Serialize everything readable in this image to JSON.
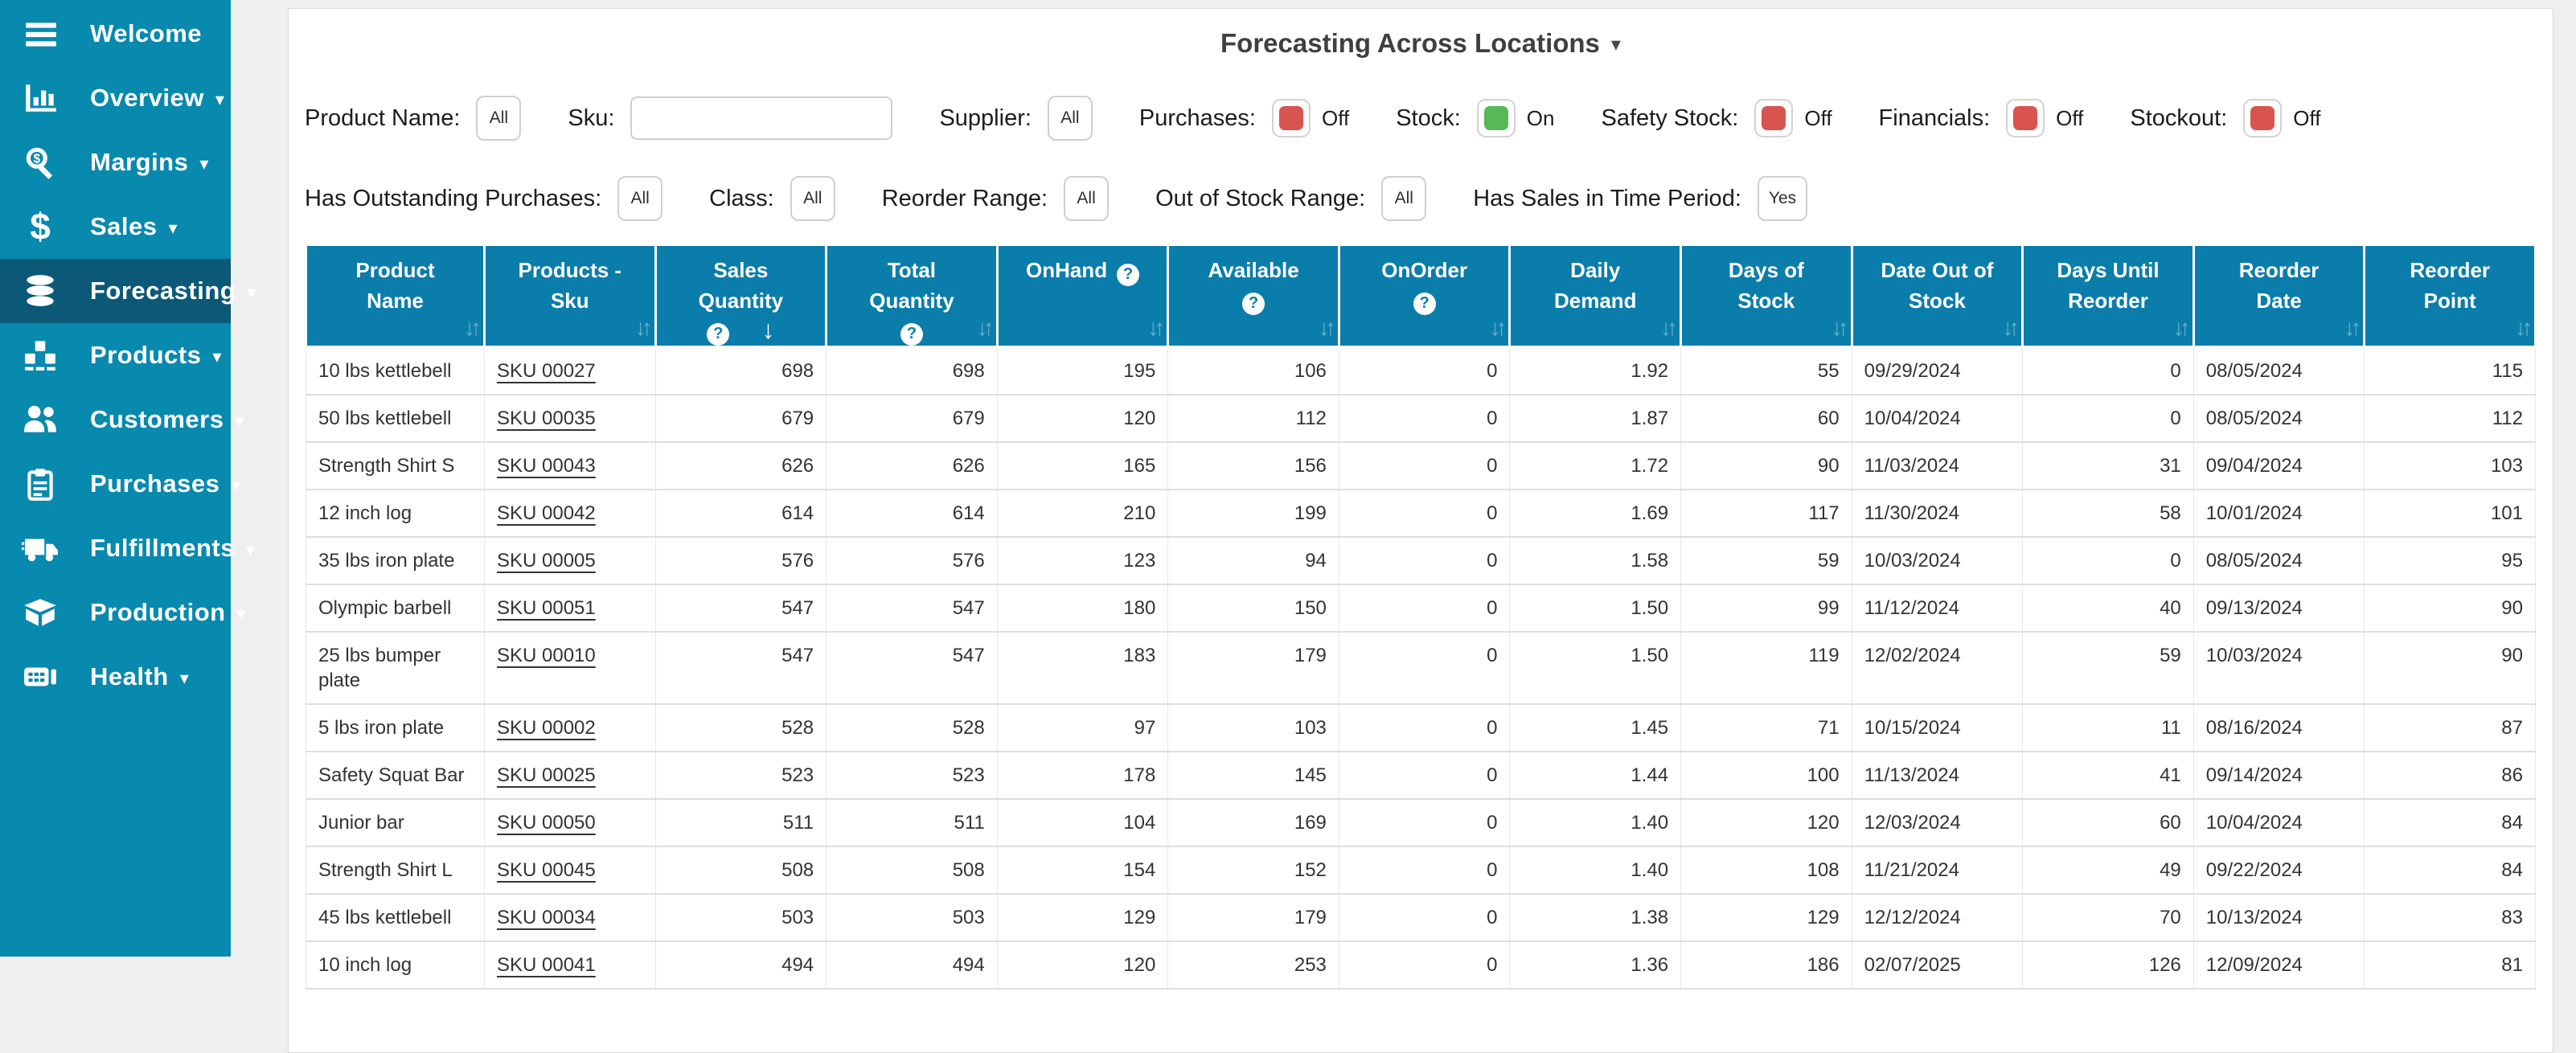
{
  "colors": {
    "sidebar": "#0889ae",
    "sidebar_selected": "#0c5877",
    "table_header": "#0b7dab",
    "toggle_on": "#57b857",
    "toggle_off": "#d9534f"
  },
  "sidebar": {
    "items": [
      {
        "label": "Welcome",
        "icon": "hamburger-menu-icon",
        "caret": false,
        "selected": false
      },
      {
        "label": "Overview",
        "icon": "bar-chart-icon",
        "caret": true,
        "selected": false
      },
      {
        "label": "Margins",
        "icon": "magnifier-dollar-icon",
        "caret": true,
        "selected": false
      },
      {
        "label": "Sales",
        "icon": "dollar-icon",
        "caret": true,
        "selected": false
      },
      {
        "label": "Forecasting",
        "icon": "database-icon",
        "caret": true,
        "selected": true
      },
      {
        "label": "Products",
        "icon": "pallet-boxes-icon",
        "caret": true,
        "selected": false
      },
      {
        "label": "Customers",
        "icon": "people-icon",
        "caret": true,
        "selected": false
      },
      {
        "label": "Purchases",
        "icon": "clipboard-icon",
        "caret": true,
        "selected": false
      },
      {
        "label": "Fulfillments",
        "icon": "truck-icon",
        "caret": true,
        "selected": false
      },
      {
        "label": "Production",
        "icon": "open-box-icon",
        "caret": true,
        "selected": false
      },
      {
        "label": "Health",
        "icon": "cash-icon",
        "caret": true,
        "selected": false
      }
    ]
  },
  "header": {
    "title": "Forecasting Across Locations"
  },
  "filters": {
    "row1": [
      {
        "name": "product-name",
        "label": "Product Name:",
        "type": "select",
        "value": "All"
      },
      {
        "name": "sku",
        "label": "Sku:",
        "type": "input",
        "value": "",
        "placeholder": ""
      },
      {
        "name": "supplier",
        "label": "Supplier:",
        "type": "select",
        "value": "All"
      },
      {
        "name": "purchases",
        "label": "Purchases:",
        "type": "toggle",
        "state": "off",
        "state_label": "Off"
      },
      {
        "name": "stock",
        "label": "Stock:",
        "type": "toggle",
        "state": "on",
        "state_label": "On"
      },
      {
        "name": "safety-stock",
        "label": "Safety Stock:",
        "type": "toggle",
        "state": "off",
        "state_label": "Off"
      },
      {
        "name": "financials",
        "label": "Financials:",
        "type": "toggle",
        "state": "off",
        "state_label": "Off"
      },
      {
        "name": "stockout",
        "label": "Stockout:",
        "type": "toggle",
        "state": "off",
        "state_label": "Off"
      }
    ],
    "row2": [
      {
        "name": "has-outstanding-purchases",
        "label": "Has Outstanding Purchases:",
        "type": "select",
        "value": "All"
      },
      {
        "name": "class",
        "label": "Class:",
        "type": "select",
        "value": "All"
      },
      {
        "name": "reorder-range",
        "label": "Reorder Range:",
        "type": "select",
        "value": "All"
      },
      {
        "name": "out-of-stock-range",
        "label": "Out of Stock Range:",
        "type": "select",
        "value": "All"
      },
      {
        "name": "has-sales-in-time-period",
        "label": "Has Sales in Time Period:",
        "type": "select",
        "value": "Yes"
      }
    ]
  },
  "table": {
    "columns": [
      {
        "key": "product-name",
        "lines": [
          "Product",
          "Name"
        ],
        "help": null,
        "sort": "both",
        "align": "left"
      },
      {
        "key": "products-sku",
        "lines": [
          "Products -",
          "Sku"
        ],
        "help": null,
        "sort": "both",
        "align": "left"
      },
      {
        "key": "sales-quantity",
        "lines": [
          "Sales",
          "Quantity"
        ],
        "help": "below",
        "sort": "desc",
        "align": "right"
      },
      {
        "key": "total-quantity",
        "lines": [
          "Total",
          "Quantity"
        ],
        "help": "below",
        "sort": "both",
        "align": "right"
      },
      {
        "key": "onhand",
        "lines": [
          "OnHand"
        ],
        "help": "inline",
        "sort": "both",
        "align": "right"
      },
      {
        "key": "available",
        "lines": [
          "Available"
        ],
        "help": "below",
        "sort": "both",
        "align": "right"
      },
      {
        "key": "onorder",
        "lines": [
          "OnOrder"
        ],
        "help": "below",
        "sort": "both",
        "align": "right"
      },
      {
        "key": "daily-demand",
        "lines": [
          "Daily",
          "Demand"
        ],
        "help": null,
        "sort": "both",
        "align": "right"
      },
      {
        "key": "days-of-stock",
        "lines": [
          "Days of",
          "Stock"
        ],
        "help": null,
        "sort": "both",
        "align": "right"
      },
      {
        "key": "date-out-of-stock",
        "lines": [
          "Date Out of",
          "Stock"
        ],
        "help": null,
        "sort": "both",
        "align": "left"
      },
      {
        "key": "days-until-reorder",
        "lines": [
          "Days Until",
          "Reorder"
        ],
        "help": null,
        "sort": "both",
        "align": "right"
      },
      {
        "key": "reorder-date",
        "lines": [
          "Reorder",
          "Date"
        ],
        "help": null,
        "sort": "both",
        "align": "left"
      },
      {
        "key": "reorder-point",
        "lines": [
          "Reorder",
          "Point"
        ],
        "help": null,
        "sort": "both",
        "align": "right"
      }
    ],
    "help_glyph": "?",
    "rows": [
      [
        "10 lbs kettlebell",
        "SKU 00027",
        "698",
        "698",
        "195",
        "106",
        "0",
        "1.92",
        "55",
        "09/29/2024",
        "0",
        "08/05/2024",
        "115"
      ],
      [
        "50 lbs kettlebell",
        "SKU 00035",
        "679",
        "679",
        "120",
        "112",
        "0",
        "1.87",
        "60",
        "10/04/2024",
        "0",
        "08/05/2024",
        "112"
      ],
      [
        "Strength Shirt S",
        "SKU 00043",
        "626",
        "626",
        "165",
        "156",
        "0",
        "1.72",
        "90",
        "11/03/2024",
        "31",
        "09/04/2024",
        "103"
      ],
      [
        "12 inch log",
        "SKU 00042",
        "614",
        "614",
        "210",
        "199",
        "0",
        "1.69",
        "117",
        "11/30/2024",
        "58",
        "10/01/2024",
        "101"
      ],
      [
        "35 lbs iron plate",
        "SKU 00005",
        "576",
        "576",
        "123",
        "94",
        "0",
        "1.58",
        "59",
        "10/03/2024",
        "0",
        "08/05/2024",
        "95"
      ],
      [
        "Olympic barbell",
        "SKU 00051",
        "547",
        "547",
        "180",
        "150",
        "0",
        "1.50",
        "99",
        "11/12/2024",
        "40",
        "09/13/2024",
        "90"
      ],
      [
        "25 lbs bumper plate",
        "SKU 00010",
        "547",
        "547",
        "183",
        "179",
        "0",
        "1.50",
        "119",
        "12/02/2024",
        "59",
        "10/03/2024",
        "90"
      ],
      [
        "5 lbs iron plate",
        "SKU 00002",
        "528",
        "528",
        "97",
        "103",
        "0",
        "1.45",
        "71",
        "10/15/2024",
        "11",
        "08/16/2024",
        "87"
      ],
      [
        "Safety Squat Bar",
        "SKU 00025",
        "523",
        "523",
        "178",
        "145",
        "0",
        "1.44",
        "100",
        "11/13/2024",
        "41",
        "09/14/2024",
        "86"
      ],
      [
        "Junior bar",
        "SKU 00050",
        "511",
        "511",
        "104",
        "169",
        "0",
        "1.40",
        "120",
        "12/03/2024",
        "60",
        "10/04/2024",
        "84"
      ],
      [
        "Strength Shirt L",
        "SKU 00045",
        "508",
        "508",
        "154",
        "152",
        "0",
        "1.40",
        "108",
        "11/21/2024",
        "49",
        "09/22/2024",
        "84"
      ],
      [
        "45 lbs kettlebell",
        "SKU 00034",
        "503",
        "503",
        "129",
        "179",
        "0",
        "1.38",
        "129",
        "12/12/2024",
        "70",
        "10/13/2024",
        "83"
      ],
      [
        "10 inch log",
        "SKU 00041",
        "494",
        "494",
        "120",
        "253",
        "0",
        "1.36",
        "186",
        "02/07/2025",
        "126",
        "12/09/2024",
        "81"
      ]
    ]
  }
}
